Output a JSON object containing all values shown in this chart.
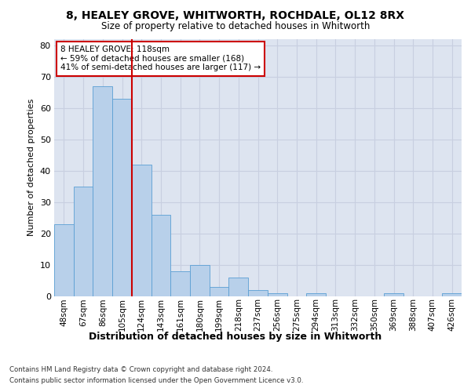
{
  "title1": "8, HEALEY GROVE, WHITWORTH, ROCHDALE, OL12 8RX",
  "title2": "Size of property relative to detached houses in Whitworth",
  "xlabel": "Distribution of detached houses by size in Whitworth",
  "ylabel": "Number of detached properties",
  "categories": [
    "48sqm",
    "67sqm",
    "86sqm",
    "105sqm",
    "124sqm",
    "143sqm",
    "161sqm",
    "180sqm",
    "199sqm",
    "218sqm",
    "237sqm",
    "256sqm",
    "275sqm",
    "294sqm",
    "313sqm",
    "332sqm",
    "350sqm",
    "369sqm",
    "388sqm",
    "407sqm",
    "426sqm"
  ],
  "values": [
    23,
    35,
    67,
    63,
    42,
    26,
    8,
    10,
    3,
    6,
    2,
    1,
    0,
    1,
    0,
    0,
    0,
    1,
    0,
    0,
    1
  ],
  "bar_color": "#b8d0ea",
  "bar_edge_color": "#5a9fd4",
  "vline_color": "#cc0000",
  "annotation_text": "8 HEALEY GROVE: 118sqm\n← 59% of detached houses are smaller (168)\n41% of semi-detached houses are larger (117) →",
  "annotation_box_color": "#cc0000",
  "ylim": [
    0,
    82
  ],
  "yticks": [
    0,
    10,
    20,
    30,
    40,
    50,
    60,
    70,
    80
  ],
  "grid_color": "#c8cfe0",
  "background_color": "#dde4f0",
  "footer1": "Contains HM Land Registry data © Crown copyright and database right 2024.",
  "footer2": "Contains public sector information licensed under the Open Government Licence v3.0."
}
